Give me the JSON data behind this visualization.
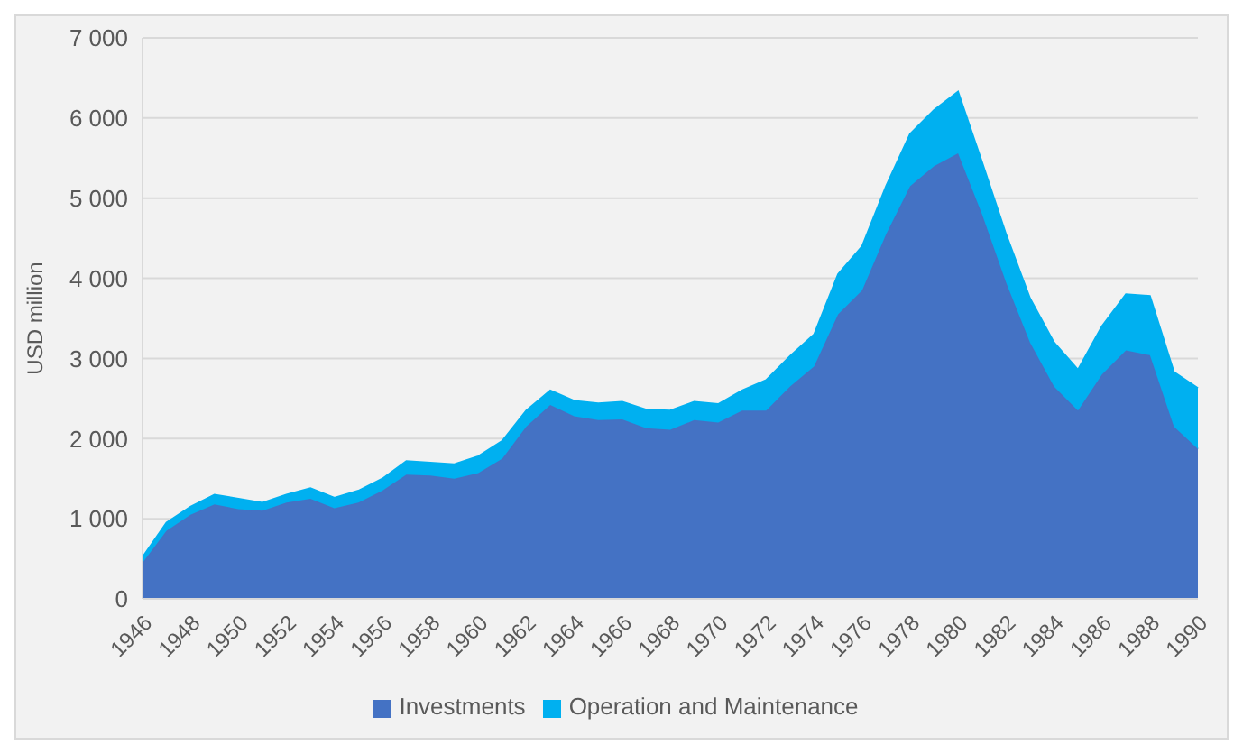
{
  "chart_data": {
    "type": "area",
    "stacked": true,
    "ylabel": "USD million",
    "categories": [
      "1946",
      null,
      "1948",
      null,
      "1950",
      null,
      "1952",
      null,
      "1954",
      null,
      "1956",
      null,
      "1958",
      null,
      "1960",
      null,
      "1962",
      null,
      "1964",
      null,
      "1966",
      null,
      "1968",
      null,
      "1970",
      null,
      "1972",
      null,
      "1974",
      null,
      "1976",
      null,
      "1978",
      null,
      "1980",
      null,
      "1982",
      null,
      "1984",
      null,
      "1986",
      null,
      "1988",
      null,
      "1990"
    ],
    "series": [
      {
        "name": "Investments",
        "color": "#4472c4",
        "values": [
          450,
          850,
          1050,
          1180,
          1120,
          1100,
          1200,
          1250,
          1130,
          1200,
          1350,
          1550,
          1540,
          1500,
          1570,
          1750,
          2150,
          2420,
          2280,
          2230,
          2240,
          2130,
          2110,
          2230,
          2200,
          2350,
          2350,
          2650,
          2900,
          3550,
          3850,
          4550,
          5150,
          5400,
          5560,
          4800,
          3950,
          3200,
          2650,
          2350,
          2800,
          3100,
          3040,
          2150,
          1870
        ]
      },
      {
        "name": "Operation and Maintenance",
        "color": "#00b0f0",
        "values": [
          70,
          100,
          100,
          120,
          130,
          100,
          100,
          130,
          130,
          150,
          150,
          170,
          160,
          180,
          210,
          220,
          200,
          180,
          190,
          210,
          220,
          230,
          240,
          230,
          230,
          250,
          380,
          380,
          400,
          500,
          550,
          600,
          650,
          700,
          770,
          650,
          600,
          550,
          550,
          510,
          600,
          700,
          740,
          680,
          760
        ]
      }
    ],
    "ylim": [
      0,
      7000
    ],
    "yticks": [
      0,
      {
        "value": 1000,
        "label": "1 000"
      },
      {
        "value": 2000,
        "label": "2 000"
      },
      {
        "value": 3000,
        "label": "3 000"
      },
      {
        "value": 4000,
        "label": "4 000"
      },
      {
        "value": 5000,
        "label": "5 000"
      },
      {
        "value": 6000,
        "label": "6 000"
      },
      {
        "value": 7000,
        "label": "7 000"
      }
    ],
    "grid": "y",
    "legend": "bottom"
  }
}
